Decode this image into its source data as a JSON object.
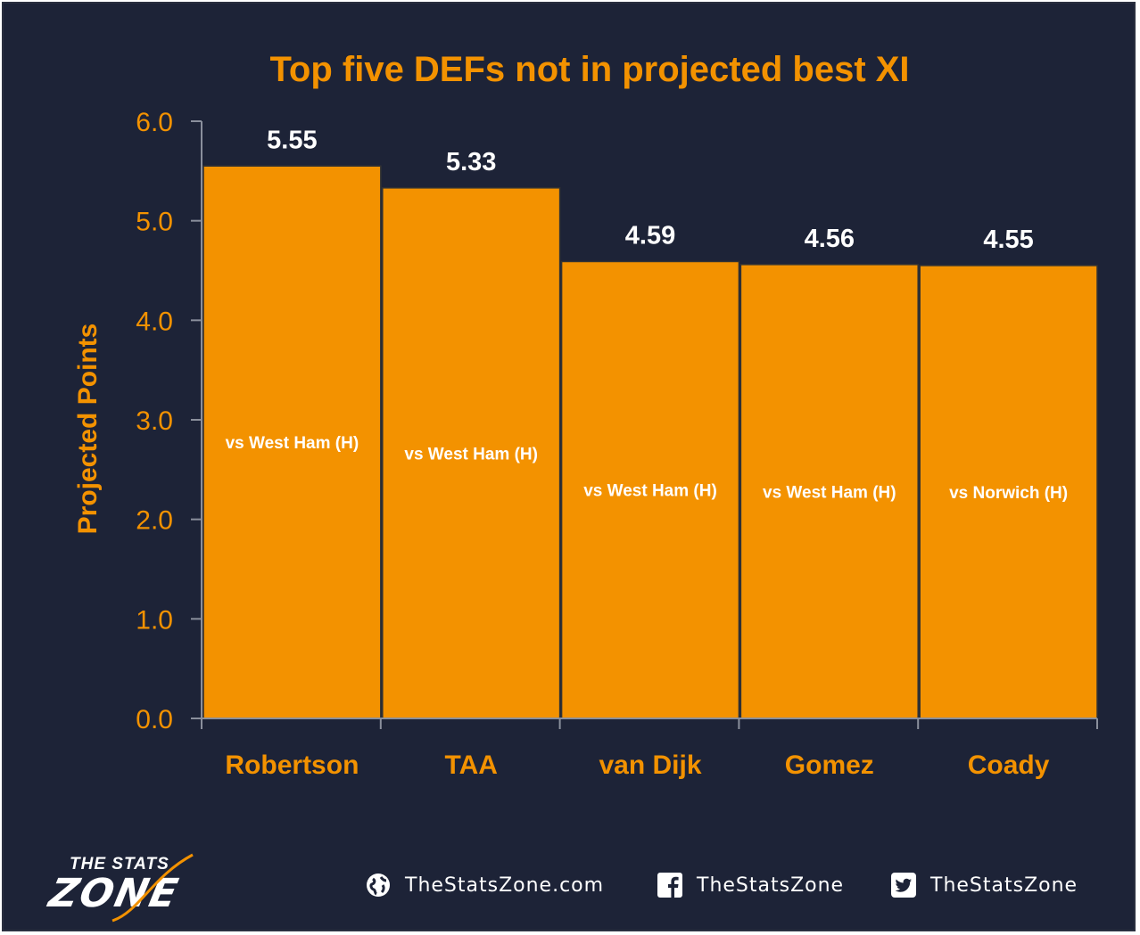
{
  "chart_data": {
    "type": "bar",
    "title": "Top five DEFs not in projected best XI",
    "ylabel": "Projected Points",
    "xlabel": "",
    "ylim": [
      0,
      6
    ],
    "yticks": [
      "0.0",
      "1.0",
      "2.0",
      "3.0",
      "4.0",
      "5.0",
      "6.0"
    ],
    "categories": [
      "Robertson",
      "TAA",
      "van Dijk",
      "Gomez",
      "Coady"
    ],
    "values": [
      5.55,
      5.33,
      4.59,
      4.56,
      4.55
    ],
    "value_labels": [
      "5.55",
      "5.33",
      "4.59",
      "4.56",
      "4.55"
    ],
    "fixtures": [
      "vs West Ham (H)",
      "vs West Ham (H)",
      "vs West Ham (H)",
      "vs West Ham (H)",
      "vs Norwich (H)"
    ],
    "grid": false,
    "legend": "none",
    "colors": {
      "bar": "#f39200",
      "bar_edge": "#333333",
      "background": "#1d2337",
      "text_accent": "#f39200",
      "text_light": "#ffffff"
    }
  },
  "footer": {
    "logo": {
      "line1": "THE STATS",
      "line2": "ZONE"
    },
    "links": [
      {
        "icon": "globe-icon",
        "label": "TheStatsZone.com"
      },
      {
        "icon": "facebook-icon",
        "label": "TheStatsZone"
      },
      {
        "icon": "twitter-icon",
        "label": "TheStatsZone"
      }
    ]
  }
}
